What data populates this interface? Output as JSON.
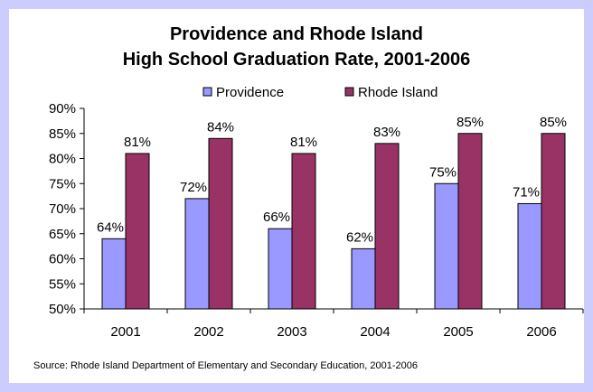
{
  "chart_data": {
    "type": "bar",
    "title": [
      "Providence and Rhode Island",
      "High School Graduation Rate, 2001-2006"
    ],
    "categories": [
      "2001",
      "2002",
      "2003",
      "2004",
      "2005",
      "2006"
    ],
    "series": [
      {
        "name": "Providence",
        "values": [
          64,
          72,
          66,
          62,
          75,
          71
        ],
        "labels": [
          "64%",
          "72%",
          "66%",
          "62%",
          "75%",
          "71%"
        ],
        "color": "#9999ff"
      },
      {
        "name": "Rhode Island",
        "values": [
          81,
          84,
          81,
          83,
          85,
          85
        ],
        "labels": [
          "81%",
          "84%",
          "81%",
          "83%",
          "85%",
          "85%"
        ],
        "color": "#993366"
      }
    ],
    "ylim": [
      50,
      90
    ],
    "yticks": [
      {
        "value": 50,
        "label": "50%"
      },
      {
        "value": 55,
        "label": "55%"
      },
      {
        "value": 60,
        "label": "60%"
      },
      {
        "value": 65,
        "label": "65%"
      },
      {
        "value": 70,
        "label": "70%"
      },
      {
        "value": 75,
        "label": "75%"
      },
      {
        "value": 80,
        "label": "80%"
      },
      {
        "value": 85,
        "label": "85%"
      },
      {
        "value": 90,
        "label": "90%"
      }
    ],
    "legend_position": "top",
    "grid": false,
    "source": "Source: Rhode Island Department of Elementary and Secondary Education, 2001-2006"
  },
  "colors": {
    "page_background": "#ccccff",
    "chart_background": "#ffffff",
    "providence_bar": "#9999ff",
    "rhode_island_bar": "#993366"
  }
}
